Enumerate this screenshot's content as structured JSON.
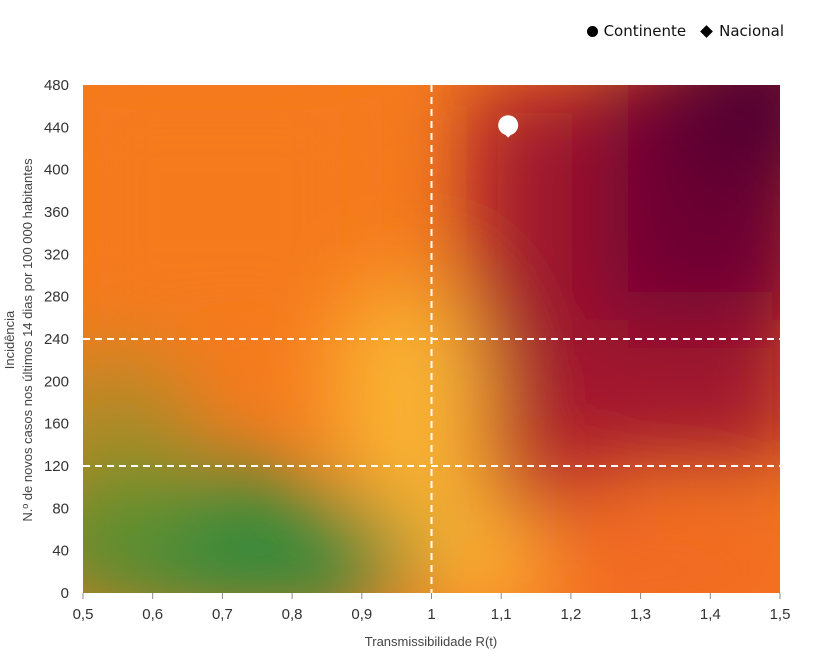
{
  "chart_data": {
    "type": "scatter",
    "title": "",
    "xlabel": "Transmissibilidade R(t)",
    "ylabel": [
      "Incidência",
      "N.º de novos casos nos últimos 14 dias por 100 000 habitantes"
    ],
    "xlim": [
      0.5,
      1.5
    ],
    "ylim": [
      0,
      480
    ],
    "x_ticks": [
      "0,5",
      "0,6",
      "0,7",
      "0,8",
      "0,9",
      "1",
      "1,1",
      "1,2",
      "1,3",
      "1,4",
      "1,5"
    ],
    "y_ticks": [
      "0",
      "40",
      "80",
      "120",
      "160",
      "200",
      "240",
      "280",
      "320",
      "360",
      "400",
      "440",
      "480"
    ],
    "reference_lines": {
      "x": [
        1
      ],
      "y": [
        120,
        240
      ]
    },
    "legend_position": "top-right",
    "series": [
      {
        "name": "Continente",
        "marker": "circle",
        "points": [
          {
            "x": 1.11,
            "y": 442
          }
        ]
      },
      {
        "name": "Nacional",
        "marker": "diamond",
        "points": [
          {
            "x": 1.11,
            "y": 436
          }
        ]
      }
    ],
    "background": "risk heatmap: green (low R, low incidence) to yellow/orange to dark red (high R, high incidence)",
    "colors": {
      "green": "#2e8b3a",
      "yellow": "#f9b233",
      "orange": "#f57a1e",
      "red": "#a0192f",
      "dark_red": "#5a0030",
      "marker": "#ffffff",
      "guide": "#ffffff"
    }
  }
}
